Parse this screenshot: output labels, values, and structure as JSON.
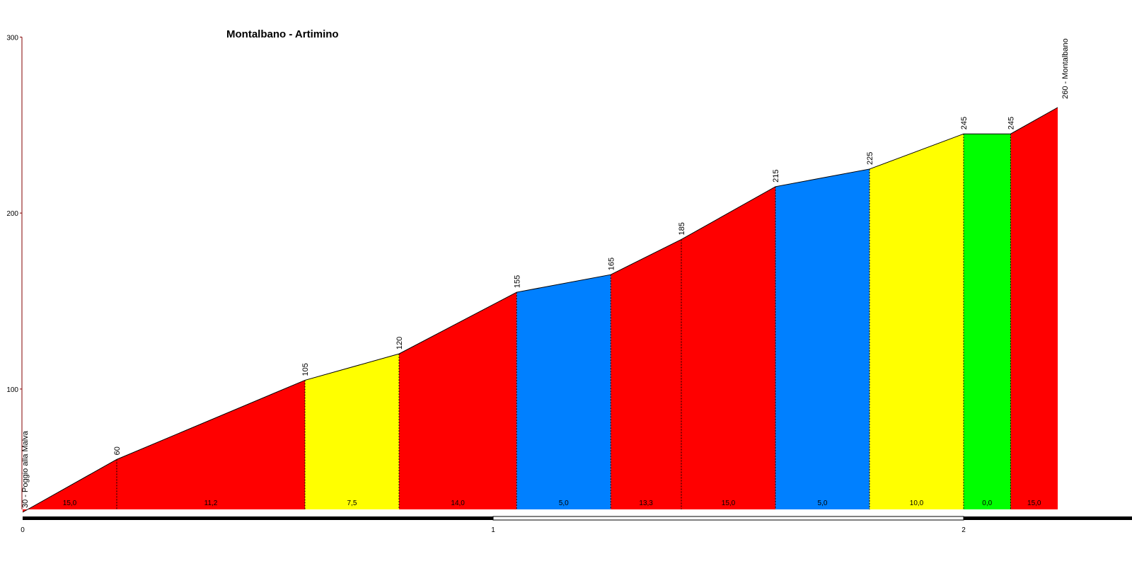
{
  "chart_data": {
    "type": "area",
    "title": "Montalbano - Artimino",
    "xlim": [
      0,
      2.35
    ],
    "ylim": [
      30,
      300
    ],
    "y_ticks": [
      100,
      200,
      300
    ],
    "x_ticks": [
      0,
      1,
      2
    ],
    "x_tick_labels": [
      "0",
      "1",
      "2"
    ],
    "y_tick_labels": [
      "100",
      "200",
      "300"
    ],
    "start_label": "30 - Poggio alla Malva",
    "end_label": "260 - Montalbano",
    "points": [
      {
        "x": 0.0,
        "y": 30,
        "label": ""
      },
      {
        "x": 0.2,
        "y": 60,
        "label": "60"
      },
      {
        "x": 0.6,
        "y": 105,
        "label": "105"
      },
      {
        "x": 0.8,
        "y": 120,
        "label": "120"
      },
      {
        "x": 1.05,
        "y": 155,
        "label": "155"
      },
      {
        "x": 1.25,
        "y": 165,
        "label": "165"
      },
      {
        "x": 1.4,
        "y": 185,
        "label": "185"
      },
      {
        "x": 1.6,
        "y": 215,
        "label": "215"
      },
      {
        "x": 1.8,
        "y": 225,
        "label": "225"
      },
      {
        "x": 2.0,
        "y": 245,
        "label": "245"
      },
      {
        "x": 2.1,
        "y": 245,
        "label": "245"
      },
      {
        "x": 2.2,
        "y": 260,
        "label": ""
      }
    ],
    "segments": [
      {
        "gradient": "15,0",
        "color": "#ff0000"
      },
      {
        "gradient": "11,2",
        "color": "#ff0000"
      },
      {
        "gradient": "7,5",
        "color": "#ffff00"
      },
      {
        "gradient": "14,0",
        "color": "#ff0000"
      },
      {
        "gradient": "5,0",
        "color": "#0080ff"
      },
      {
        "gradient": "13,3",
        "color": "#ff0000"
      },
      {
        "gradient": "15,0",
        "color": "#ff0000"
      },
      {
        "gradient": "5,0",
        "color": "#0080ff"
      },
      {
        "gradient": "10,0",
        "color": "#ffff00"
      },
      {
        "gradient": "0,0",
        "color": "#00ff00"
      },
      {
        "gradient": "15,0",
        "color": "#ff0000"
      }
    ],
    "axis_color": "#800000"
  }
}
